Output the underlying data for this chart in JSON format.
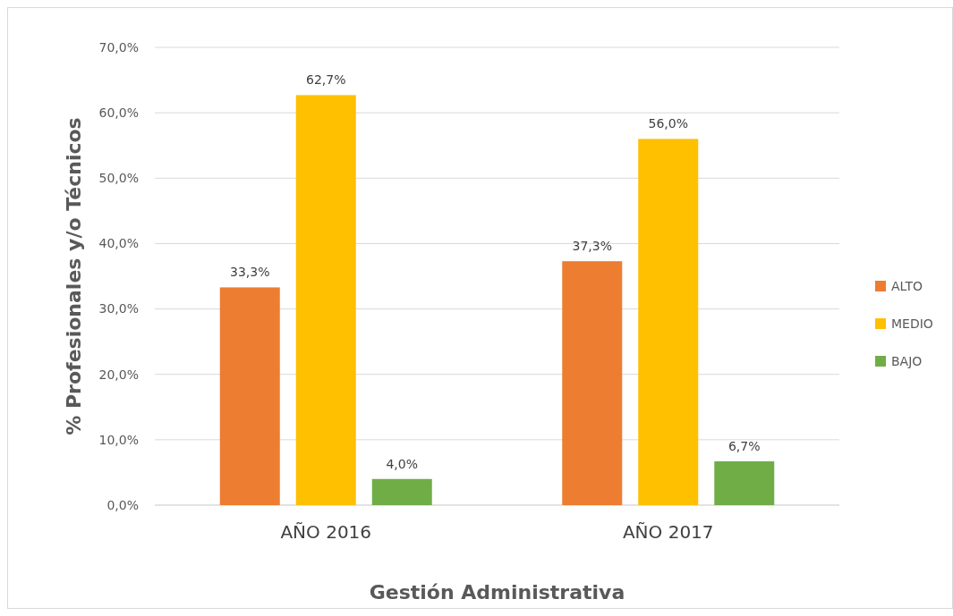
{
  "chart_data": {
    "type": "bar",
    "xlabel": "Gestión Administrativa",
    "ylabel": "% Profesionales y/o Técnicos",
    "categories": [
      "AÑO 2016",
      "AÑO 2017"
    ],
    "series": [
      {
        "name": "ALTO",
        "color": "#ed7d31",
        "values": [
          33.3,
          37.3
        ],
        "value_labels": [
          "33,3%",
          "37,3%"
        ]
      },
      {
        "name": "MEDIO",
        "color": "#ffc000",
        "values": [
          62.7,
          56.0
        ],
        "value_labels": [
          "62,7%",
          "56,0%"
        ]
      },
      {
        "name": "BAJO",
        "color": "#70ad47",
        "values": [
          4.0,
          6.7
        ],
        "value_labels": [
          "4,0%",
          "6,7%"
        ]
      }
    ],
    "ylim": [
      0,
      70
    ],
    "yticks": [
      {
        "value": 0,
        "label": "0,0%"
      },
      {
        "value": 10,
        "label": "10,0%"
      },
      {
        "value": 20,
        "label": "20,0%"
      },
      {
        "value": 30,
        "label": "30,0%"
      },
      {
        "value": 40,
        "label": "40,0%"
      },
      {
        "value": 50,
        "label": "50,0%"
      },
      {
        "value": 60,
        "label": "60,0%"
      },
      {
        "value": 70,
        "label": "70,0%"
      }
    ],
    "grid": "y",
    "legend": "right"
  }
}
